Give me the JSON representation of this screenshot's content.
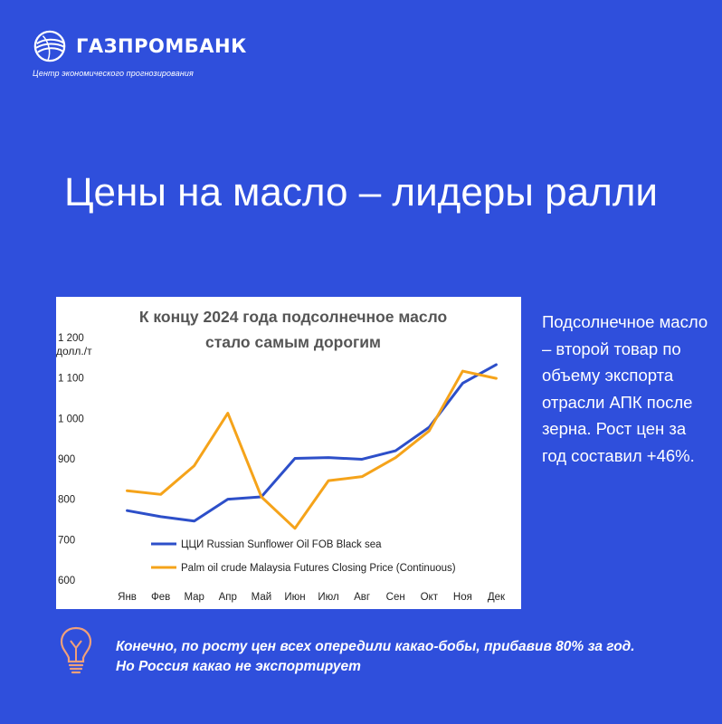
{
  "brand": {
    "name": "ГАЗПРОМБАНК",
    "tagline": "Центр экономического прогнозирования",
    "logo_icon": "globe-logo-icon"
  },
  "headline": "Цены на масло – лидеры ралли",
  "side_text": "Подсолнечное масло – второй товар по объему экспорта отрасли АПК после зерна. Рост цен за год составил +46%.",
  "footer": {
    "icon": "lightbulb-icon",
    "line1": "Конечно, по росту цен всех опередили какао-бобы, прибавив 80% за год.",
    "line2": "Но Россия какао не экспортирует"
  },
  "colors": {
    "background": "#2f4fdc",
    "series_blue": "#2d4fc9",
    "series_orange": "#f5a31a",
    "bulb": "#f0a07a"
  },
  "chart_data": {
    "type": "line",
    "title_line1": "К концу 2024 года подсолнечное масло",
    "title_line2": "стало самым дорогим",
    "ylabel": "долл./т",
    "ylim": [
      600,
      1200
    ],
    "yticks": [
      600,
      700,
      800,
      900,
      1000,
      1100,
      1200
    ],
    "ytick_labels": [
      "600",
      "700",
      "800",
      "900",
      "1 000",
      "1 100",
      "1 200"
    ],
    "categories": [
      "Янв",
      "Фев",
      "Мар",
      "Апр",
      "Май",
      "Июн",
      "Июл",
      "Авг",
      "Сен",
      "Окт",
      "Ноя",
      "Дек"
    ],
    "series": [
      {
        "name": "ЦЦИ Russian Sunflower Oil FOB Black sea",
        "color": "#2d4fc9",
        "values": [
          772,
          757,
          746,
          800,
          806,
          901,
          903,
          899,
          920,
          978,
          1087,
          1133
        ]
      },
      {
        "name": "Palm oil crude Malaysia Futures Closing Price (Continuous)",
        "color": "#f5a31a",
        "values": [
          821,
          812,
          883,
          1013,
          806,
          728,
          846,
          856,
          903,
          969,
          1117,
          1099
        ]
      }
    ],
    "grid": false,
    "legend": "inside-bottom"
  }
}
